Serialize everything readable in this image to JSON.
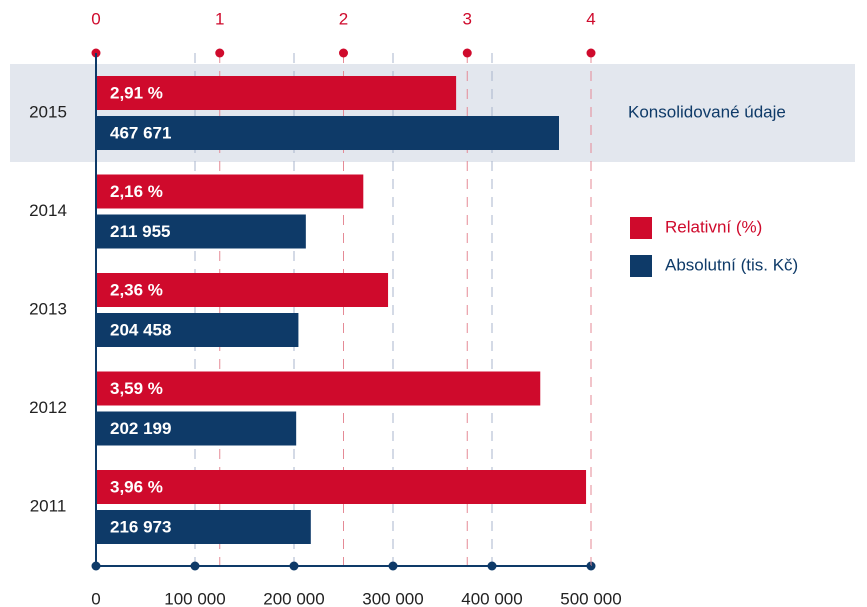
{
  "chart_data": {
    "type": "bar",
    "orientation": "horizontal",
    "annotation": "Konsolidované údaje",
    "categories": [
      "2015",
      "2014",
      "2013",
      "2012",
      "2011"
    ],
    "series": [
      {
        "name": "Relativní (%)",
        "color": "#cf0a2c",
        "axis": "x2",
        "values": [
          2.91,
          2.16,
          2.36,
          3.59,
          3.96
        ],
        "value_labels": [
          "2,91 %",
          "2,16 %",
          "2,36 %",
          "3,59 %",
          "3,96 %"
        ]
      },
      {
        "name": "Absolutní (tis. Kč)",
        "color": "#0e3a68",
        "values": [
          467671,
          211955,
          204458,
          202199,
          216973
        ],
        "value_labels": [
          "467 671",
          "211 955",
          "204 458",
          "202 199",
          "216 973"
        ]
      }
    ],
    "xlim": [
      0,
      500000
    ],
    "xticks": [
      0,
      {
        "value": 100000,
        "label": "100 000"
      },
      {
        "value": 200000,
        "label": "200 000"
      },
      {
        "value": 300000,
        "label": "300 000"
      },
      {
        "value": 400000,
        "label": "400 000"
      },
      {
        "value": 500000,
        "label": "500 000"
      }
    ],
    "x2lim": [
      0,
      4
    ],
    "x2ticks": [
      0,
      1,
      2,
      3,
      4
    ],
    "grid": true
  }
}
